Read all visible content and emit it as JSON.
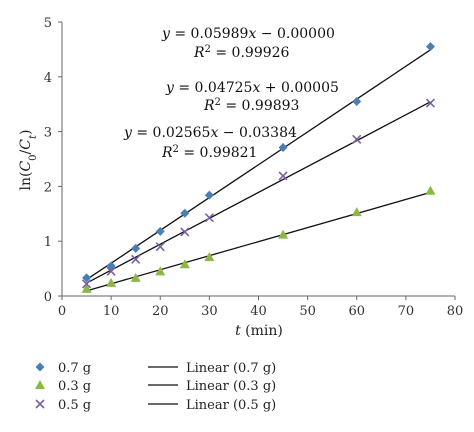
{
  "chart_data": {
    "type": "scatter",
    "xlabel_main": "t",
    "xlabel_unit": " (min)",
    "ylabel": {
      "pre": "ln(",
      "c0": "C",
      "sub0": "0",
      "slash": "/",
      "ct": "C",
      "subt": "t",
      "post": ")"
    },
    "xlim": [
      0,
      80
    ],
    "ylim": [
      0,
      5
    ],
    "xticks": [
      "0",
      "10",
      "20",
      "30",
      "40",
      "50",
      "60",
      "70",
      "80"
    ],
    "yticks": [
      "0",
      "1",
      "2",
      "3",
      "4",
      "5"
    ],
    "grid": false,
    "series": [
      {
        "name": "0.7 g",
        "marker": "diamond",
        "color": "#4a7fb5",
        "x": [
          5,
          10,
          15,
          20,
          25,
          30,
          45,
          60,
          75
        ],
        "y": [
          0.33,
          0.55,
          0.87,
          1.18,
          1.51,
          1.84,
          2.71,
          3.55,
          4.55
        ],
        "fit": {
          "slope": 0.05989,
          "intercept": 0.0
        }
      },
      {
        "name": "0.3 g",
        "marker": "triangle",
        "color": "#8bb845",
        "x": [
          5,
          10,
          15,
          20,
          25,
          30,
          45,
          60,
          75
        ],
        "y": [
          0.13,
          0.24,
          0.33,
          0.45,
          0.58,
          0.71,
          1.12,
          1.53,
          1.92
        ],
        "fit": {
          "slope": 0.02565,
          "intercept": -0.03384
        }
      },
      {
        "name": "0.5 g",
        "marker": "x",
        "color": "#7a5fa0",
        "x": [
          5,
          10,
          15,
          20,
          25,
          30,
          45,
          60,
          75
        ],
        "y": [
          0.22,
          0.45,
          0.67,
          0.9,
          1.17,
          1.43,
          2.19,
          2.86,
          3.52
        ],
        "fit": {
          "slope": 0.04725,
          "intercept": 5e-05
        }
      }
    ],
    "annotations": [
      {
        "eq_y": "y",
        "eq_x": "x",
        "eq_a": " = 0.05989",
        "eq_b": " − 0.00000",
        "r2_lhs": "R",
        "r2_sup": "2",
        "r2_rhs": " = 0.99926"
      },
      {
        "eq_y": "y",
        "eq_x": "x",
        "eq_a": " = 0.04725",
        "eq_b": " + 0.00005",
        "r2_lhs": "R",
        "r2_sup": "2",
        "r2_rhs": " = 0.99893"
      },
      {
        "eq_y": "y",
        "eq_x": "x",
        "eq_a": " = 0.02565",
        "eq_b": " − 0.03384",
        "r2_lhs": "R",
        "r2_sup": "2",
        "r2_rhs": " = 0.99821"
      }
    ],
    "legend": {
      "placement": "bottom",
      "markers": [
        "0.7 g",
        "0.3 g",
        "0.5 g"
      ],
      "lines": [
        "Linear (0.7 g)",
        "Linear (0.3 g)",
        "Linear (0.5 g)"
      ]
    }
  }
}
